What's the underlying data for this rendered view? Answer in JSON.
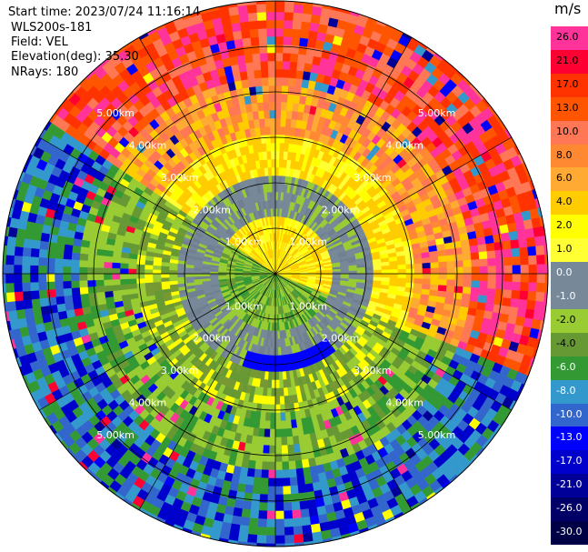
{
  "header": {
    "start_time": "Start time: 2023/07/24 11:16:14",
    "instrument": "WLS200s-181",
    "field": "Field: VEL",
    "elevation": "Elevation(deg): 35.30",
    "nrays": "NRays: 180"
  },
  "colorbar": {
    "unit": "m/s",
    "ticks": [
      "26.0",
      "21.0",
      "17.0",
      "13.0",
      "10.0",
      "8.0",
      "6.0",
      "4.0",
      "2.0",
      "1.0",
      "0.0",
      "-1.0",
      "-2.0",
      "-4.0",
      "-6.0",
      "-8.0",
      "-10.0",
      "-13.0",
      "-17.0",
      "-21.0",
      "-26.0",
      "-30.0"
    ],
    "colors": [
      "#ff3399",
      "#ff0033",
      "#ff3300",
      "#ff5500",
      "#ff7755",
      "#ff8833",
      "#ffaa33",
      "#ffcc00",
      "#ffff00",
      "#ffff33",
      "#778899",
      "#778899",
      "#99cc33",
      "#669933",
      "#339933",
      "#3399cc",
      "#3366cc",
      "#0000ff",
      "#0000cc",
      "#000099",
      "#000066",
      "#000044"
    ]
  },
  "chart_data": {
    "type": "ppi",
    "field": "VEL",
    "unit": "m/s",
    "elevation_deg": 35.3,
    "nrays": 180,
    "range_rings_km": [
      1.0,
      2.0,
      3.0,
      4.0,
      5.0
    ],
    "range_labels": [
      "1.00km",
      "2.00km",
      "3.00km",
      "4.00km",
      "5.00km"
    ],
    "max_range_km": 6.0,
    "velocity_layers": [
      {
        "r0_km": 0.0,
        "r1_km": 0.4,
        "towards": "green",
        "away": "yellow"
      },
      {
        "r0_km": 0.4,
        "r1_km": 1.1,
        "towards": "green",
        "away": "yellow"
      },
      {
        "r0_km": 1.1,
        "r1_km": 2.0,
        "towards": "grey",
        "away": "grey"
      },
      {
        "r0_km": 2.0,
        "r1_km": 3.0,
        "towards": "olive",
        "away": "yellow"
      },
      {
        "r0_km": 3.0,
        "r1_km": 4.2,
        "towards": "green",
        "away": "orange"
      },
      {
        "r0_km": 4.2,
        "r1_km": 6.0,
        "towards": "blue",
        "away": "red"
      }
    ]
  }
}
